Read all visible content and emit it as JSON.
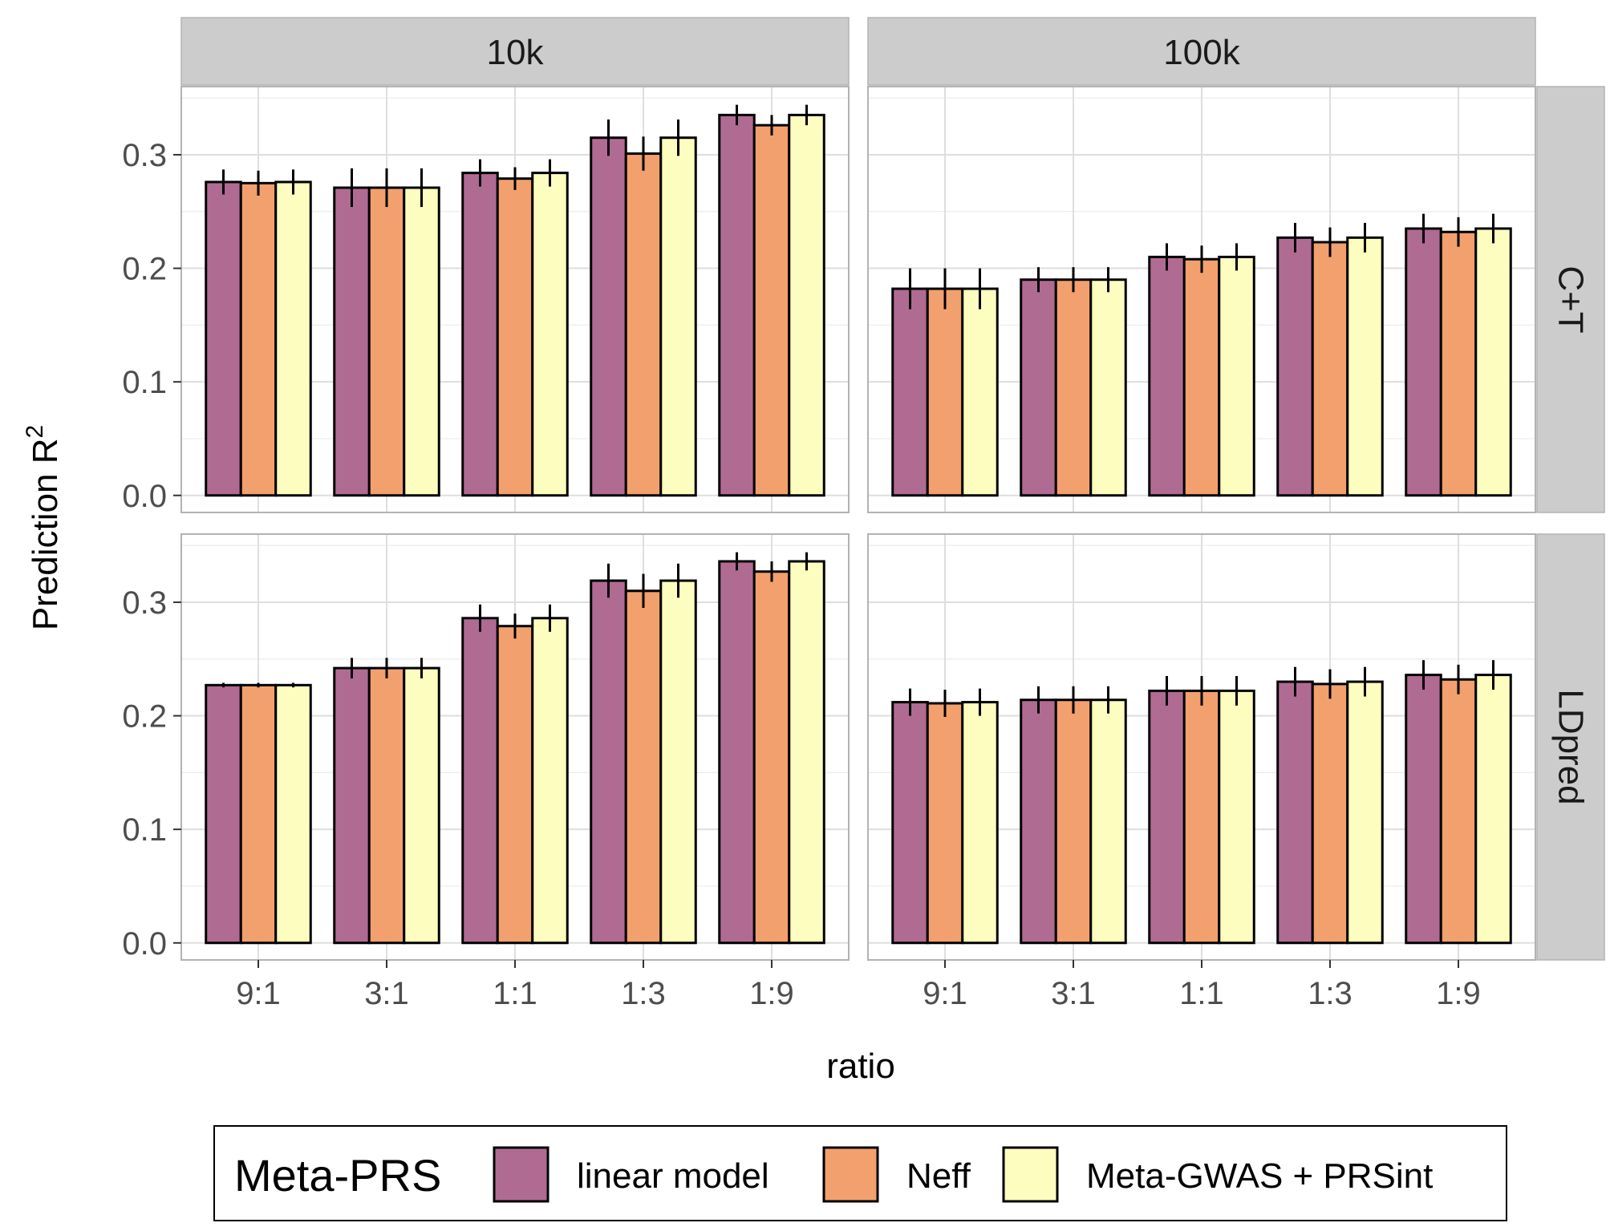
{
  "chart_data": {
    "type": "bar",
    "ylabel": "Prediction R",
    "ylabel_superscript": "2",
    "xlabel": "ratio",
    "categories": [
      "9:1",
      "3:1",
      "1:1",
      "1:3",
      "1:9"
    ],
    "column_facets": [
      "10k",
      "100k"
    ],
    "row_facets": [
      "C+T",
      "LDpred"
    ],
    "ylim": [
      -0.015,
      0.36
    ],
    "yticks": [
      0.0,
      0.1,
      0.2,
      0.3
    ],
    "ytick_labels": [
      "0.0",
      "0.1",
      "0.2",
      "0.3"
    ],
    "legend": {
      "title": "Meta-PRS",
      "position": "bottom",
      "items": [
        "linear model",
        "Neff",
        "Meta-GWAS + PRSint"
      ]
    },
    "colors": {
      "linear model": "#b06b93",
      "Neff": "#f2a06e",
      "Meta-GWAS + PRSint": "#fdfdbf"
    },
    "grid": true,
    "panels": [
      {
        "row": "C+T",
        "col": "10k",
        "series": [
          {
            "name": "linear model",
            "values": [
              0.276,
              0.271,
              0.284,
              0.315,
              0.335
            ],
            "errors": [
              0.011,
              0.017,
              0.012,
              0.016,
              0.009
            ]
          },
          {
            "name": "Neff",
            "values": [
              0.275,
              0.271,
              0.279,
              0.301,
              0.326
            ],
            "errors": [
              0.011,
              0.017,
              0.01,
              0.015,
              0.009
            ]
          },
          {
            "name": "Meta-GWAS + PRSint",
            "values": [
              0.276,
              0.271,
              0.284,
              0.315,
              0.335
            ],
            "errors": [
              0.011,
              0.017,
              0.012,
              0.016,
              0.009
            ]
          }
        ]
      },
      {
        "row": "C+T",
        "col": "100k",
        "series": [
          {
            "name": "linear model",
            "values": [
              0.182,
              0.19,
              0.21,
              0.227,
              0.235
            ],
            "errors": [
              0.018,
              0.011,
              0.012,
              0.013,
              0.013
            ]
          },
          {
            "name": "Neff",
            "values": [
              0.182,
              0.19,
              0.208,
              0.223,
              0.232
            ],
            "errors": [
              0.018,
              0.011,
              0.012,
              0.013,
              0.013
            ]
          },
          {
            "name": "Meta-GWAS + PRSint",
            "values": [
              0.182,
              0.19,
              0.21,
              0.227,
              0.235
            ],
            "errors": [
              0.018,
              0.011,
              0.012,
              0.013,
              0.013
            ]
          }
        ]
      },
      {
        "row": "LDpred",
        "col": "10k",
        "series": [
          {
            "name": "linear model",
            "values": [
              0.227,
              0.242,
              0.286,
              0.319,
              0.336
            ],
            "errors": [
              0.002,
              0.009,
              0.012,
              0.015,
              0.008
            ]
          },
          {
            "name": "Neff",
            "values": [
              0.227,
              0.242,
              0.279,
              0.31,
              0.327
            ],
            "errors": [
              0.002,
              0.009,
              0.011,
              0.015,
              0.009
            ]
          },
          {
            "name": "Meta-GWAS + PRSint",
            "values": [
              0.227,
              0.242,
              0.286,
              0.319,
              0.336
            ],
            "errors": [
              0.002,
              0.009,
              0.012,
              0.015,
              0.008
            ]
          }
        ]
      },
      {
        "row": "LDpred",
        "col": "100k",
        "series": [
          {
            "name": "linear model",
            "values": [
              0.212,
              0.214,
              0.222,
              0.23,
              0.236
            ],
            "errors": [
              0.012,
              0.012,
              0.013,
              0.013,
              0.013
            ]
          },
          {
            "name": "Neff",
            "values": [
              0.211,
              0.214,
              0.222,
              0.228,
              0.232
            ],
            "errors": [
              0.012,
              0.012,
              0.013,
              0.013,
              0.013
            ]
          },
          {
            "name": "Meta-GWAS + PRSint",
            "values": [
              0.212,
              0.214,
              0.222,
              0.23,
              0.236
            ],
            "errors": [
              0.012,
              0.012,
              0.013,
              0.013,
              0.013
            ]
          }
        ]
      }
    ]
  }
}
